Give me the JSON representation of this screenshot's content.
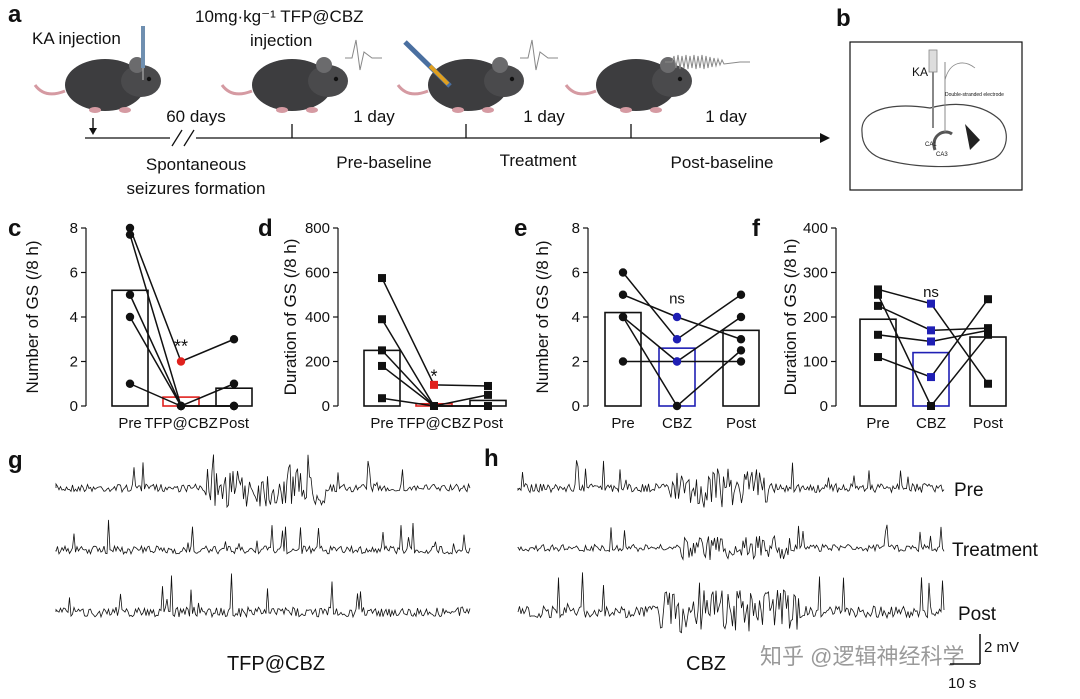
{
  "panel_letters": {
    "a": "a",
    "b": "b",
    "c": "c",
    "d": "d",
    "e": "e",
    "f": "f",
    "g": "g",
    "h": "h"
  },
  "timeline": {
    "ka_injection": "KA injection",
    "tfp_dose": "10mg·kg⁻¹ TFP@CBZ",
    "tfp_injection": "injection",
    "segments": [
      {
        "duration": "60 days",
        "label_line1": "Spontaneous",
        "label_line2": "seizures formation"
      },
      {
        "duration": "1 day",
        "label_line1": "Pre-baseline",
        "label_line2": ""
      },
      {
        "duration": "1 day",
        "label_line1": "Treatment",
        "label_line2": ""
      },
      {
        "duration": "1 day",
        "label_line1": "Post-baseline",
        "label_line2": ""
      }
    ]
  },
  "brain_panel": {
    "ka": "KA",
    "electrode_label": "Double-stranded electrode",
    "ca1": "CA1",
    "ca3": "CA3"
  },
  "colors": {
    "red": "#e0211d",
    "blue": "#1f1fb4",
    "black": "#111111"
  },
  "chart_data": [
    {
      "panel": "c",
      "type": "bar",
      "ylabel": "Number of GS (/8 h)",
      "ylim": [
        0,
        8
      ],
      "yticks": [
        0,
        2,
        4,
        6,
        8
      ],
      "categories": [
        "Pre",
        "TFP@CBZ",
        "Post"
      ],
      "values": [
        5.2,
        0.4,
        0.8
      ],
      "bar_colors": [
        "black",
        "red",
        "black"
      ],
      "paired_lines": [
        [
          8,
          2,
          3
        ],
        [
          7.7,
          0,
          1
        ],
        [
          5,
          0,
          0
        ],
        [
          4,
          0,
          0
        ],
        [
          1,
          0,
          0
        ]
      ],
      "highlight_category_index": 1,
      "highlight_color": "red",
      "annotation": "**",
      "annotation_category_index": 1,
      "annotation_y": 2.4
    },
    {
      "panel": "d",
      "type": "bar",
      "ylabel": "Duration of GS (/8 h)",
      "ylim": [
        0,
        800
      ],
      "yticks": [
        0,
        200,
        400,
        600,
        800
      ],
      "categories": [
        "Pre",
        "TFP@CBZ",
        "Post"
      ],
      "values": [
        250,
        10,
        25
      ],
      "bar_colors": [
        "black",
        "red",
        "black"
      ],
      "paired_lines": [
        [
          575,
          95,
          90
        ],
        [
          390,
          0,
          50
        ],
        [
          250,
          0,
          0
        ],
        [
          180,
          0,
          0
        ],
        [
          35,
          0,
          0
        ]
      ],
      "marker": "square",
      "highlight_category_index": 1,
      "highlight_color": "red",
      "annotation": "*",
      "annotation_category_index": 1,
      "annotation_y": 105
    },
    {
      "panel": "e",
      "type": "bar",
      "ylabel": "Number of GS (/8 h)",
      "ylim": [
        0,
        8
      ],
      "yticks": [
        0,
        2,
        4,
        6,
        8
      ],
      "categories": [
        "Pre",
        "CBZ",
        "Post"
      ],
      "values": [
        4.2,
        2.6,
        3.4
      ],
      "bar_colors": [
        "black",
        "blue",
        "black"
      ],
      "paired_lines": [
        [
          6,
          3,
          5
        ],
        [
          5,
          4,
          3
        ],
        [
          4,
          2,
          4
        ],
        [
          2,
          2,
          2
        ],
        [
          4,
          0,
          2.5
        ]
      ],
      "highlight_category_index": 1,
      "highlight_color": "blue",
      "annotation": "ns",
      "annotation_category_index": 1,
      "annotation_y": 4.6
    },
    {
      "panel": "f",
      "type": "bar",
      "ylabel": "Duration of GS (/8 h)",
      "ylim": [
        0,
        400
      ],
      "yticks": [
        0,
        100,
        200,
        300,
        400
      ],
      "categories": [
        "Pre",
        "CBZ",
        "Post"
      ],
      "values": [
        195,
        120,
        155
      ],
      "bar_colors": [
        "black",
        "blue",
        "black"
      ],
      "paired_lines": [
        [
          262,
          230,
          50
        ],
        [
          225,
          170,
          175
        ],
        [
          160,
          145,
          170
        ],
        [
          110,
          65,
          240
        ],
        [
          250,
          0,
          160
        ]
      ],
      "marker": "square",
      "highlight_category_index": 1,
      "highlight_color": "blue",
      "annotation": "ns",
      "annotation_category_index": 1,
      "annotation_y": 245
    }
  ],
  "eeg": {
    "g_label": "TFP@CBZ",
    "h_label": "CBZ",
    "row_labels": [
      "Pre",
      "Treatment",
      "Post"
    ],
    "scale_v": "2 mV",
    "scale_t": "10 s"
  },
  "watermark": "知乎 @逻辑神经科学"
}
